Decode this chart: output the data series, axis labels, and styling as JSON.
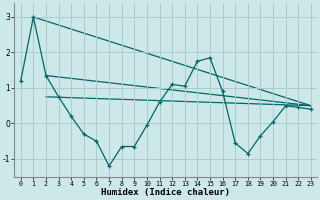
{
  "xlabel": "Humidex (Indice chaleur)",
  "bg_color": "#cce8e8",
  "grid_color": "#aacccc",
  "line_color": "#006666",
  "xlim": [
    -0.5,
    23.5
  ],
  "ylim": [
    -1.5,
    3.4
  ],
  "yticks": [
    -1,
    0,
    1,
    2,
    3
  ],
  "xticks": [
    0,
    1,
    2,
    3,
    4,
    5,
    6,
    7,
    8,
    9,
    10,
    11,
    12,
    13,
    14,
    15,
    16,
    17,
    18,
    19,
    20,
    21,
    22,
    23
  ],
  "main_x": [
    0,
    1,
    2,
    3,
    4,
    5,
    6,
    7,
    8,
    9,
    10,
    11,
    12,
    13,
    14,
    15,
    16,
    17,
    18,
    19,
    20,
    21,
    22,
    23
  ],
  "main_y": [
    1.2,
    3.0,
    1.35,
    0.75,
    0.2,
    -0.3,
    -0.5,
    -1.2,
    -0.65,
    -0.65,
    -0.05,
    0.6,
    1.1,
    1.05,
    1.75,
    1.85,
    0.9,
    -0.55,
    -0.85,
    -0.35,
    0.05,
    0.5,
    0.45,
    0.4
  ],
  "trend1_x": [
    1,
    23
  ],
  "trend1_y": [
    3.0,
    0.5
  ],
  "trend2_x": [
    2,
    23
  ],
  "trend2_y": [
    1.35,
    0.5
  ],
  "trend3_x": [
    2,
    23
  ],
  "trend3_y": [
    0.75,
    0.5
  ]
}
